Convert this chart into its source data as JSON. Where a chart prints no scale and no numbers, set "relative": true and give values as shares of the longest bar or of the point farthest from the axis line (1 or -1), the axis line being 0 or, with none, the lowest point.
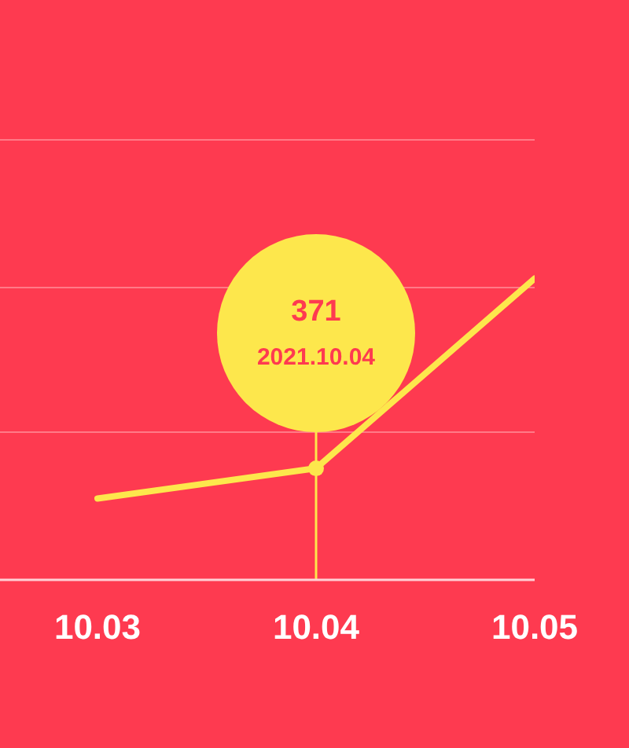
{
  "chart_data": {
    "type": "line",
    "relative": true,
    "categories": [
      "10.03",
      "10.04",
      "10.05"
    ],
    "series": [
      {
        "color": "#fde74c",
        "values": [
          0.27,
          0.37,
          1
        ]
      }
    ],
    "annotations": [
      "371",
      "2021.10.04"
    ],
    "ref_lines": [
      {
        "axis": "x",
        "value": "10.04",
        "color": "#fde74c"
      },
      {
        "axis": "y",
        "value": 0.49,
        "color": "#ff7a87"
      },
      {
        "axis": "y",
        "value": 0.97,
        "color": "#ff7a87"
      },
      {
        "axis": "y",
        "value": 1.46,
        "color": "#ff7a87"
      }
    ],
    "marker": "none",
    "line_style": "solid"
  }
}
